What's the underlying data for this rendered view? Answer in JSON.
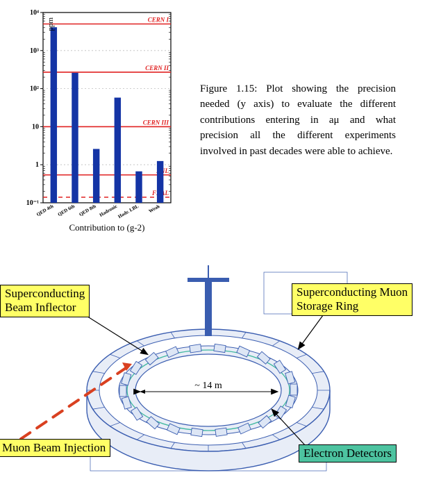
{
  "chart": {
    "type": "bar-log",
    "ylabel": "ppm",
    "ylabel_fontsize": 11,
    "xlabel": "Contribution to (g-2)",
    "xlabel_fontsize": 13,
    "xlabel_color": "#000000",
    "categories": [
      "QED 4th",
      "QED 6th",
      "QED 8th",
      "Hadronic",
      "Hadr. LBL",
      "Weak"
    ],
    "values": [
      4100,
      260,
      2.6,
      58,
      0.67,
      1.25
    ],
    "bar_color": "#1434a5",
    "bar_width": 0.14,
    "yaxis": {
      "min": 0.1,
      "max": 10000,
      "ticks": [
        0.1,
        1,
        10,
        100,
        1000,
        10000
      ],
      "tick_labels": [
        "10⁻¹",
        "1",
        "10",
        "10²",
        "10³",
        "10⁴"
      ],
      "ylim": [
        0.1,
        10000
      ]
    },
    "reference_lines": [
      {
        "label": "CERN I",
        "value": 5000,
        "color": "#e02020",
        "style": "solid"
      },
      {
        "label": "CERN II",
        "value": 270,
        "color": "#e02020",
        "style": "solid"
      },
      {
        "label": "CERN III",
        "value": 10,
        "color": "#e02020",
        "style": "solid"
      },
      {
        "label": "BNL",
        "value": 0.54,
        "color": "#e02020",
        "style": "solid"
      },
      {
        "label": "FNAL",
        "value": 0.14,
        "color": "#e02020",
        "style": "dashed"
      }
    ],
    "grid_color": "#bdbdbd",
    "axis_color": "#000000",
    "tick_fontsize": 10,
    "category_fontsize": 7,
    "ref_label_fontsize": 9,
    "ref_label_color": "#e02020",
    "background_color": "#ffffff"
  },
  "caption": {
    "label": "Figure 1.15:",
    "text": "Plot showing the precision needed (y axis) to evaluate the different contributions entering in aμ and what precision all the different experiments involved in past decades were able to achieve."
  },
  "diagram": {
    "labels": {
      "inflector": "Superconducting\nBeam Inflector",
      "ring": "Superconducting Muon\nStorage Ring",
      "injection": "Muon Beam Injection",
      "detectors": "Electron Detectors",
      "diameter": "~ 14 m"
    },
    "colors": {
      "label_yellow": "#ffff66",
      "label_teal": "#4dc3a0",
      "ring_line": "#3a5db0",
      "ring_fill": "#e8edf7",
      "teal_line": "#3fb89f",
      "injection_dash": "#d94020",
      "arrow_black": "#000000"
    },
    "injection_dash_width": 4
  }
}
